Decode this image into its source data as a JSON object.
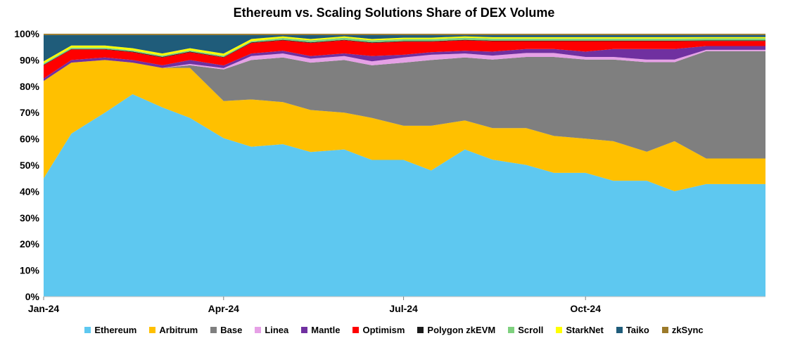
{
  "chart_data": {
    "type": "area",
    "title": "Ethereum vs. Scaling Solutions Share of DEX Volume",
    "xlabel": "",
    "ylabel": "",
    "ylim": [
      0,
      100
    ],
    "y_unit": "%",
    "y_ticks": [
      "0%",
      "10%",
      "20%",
      "30%",
      "40%",
      "50%",
      "60%",
      "70%",
      "80%",
      "90%",
      "100%"
    ],
    "x_tick_labels": [
      "Jan-24",
      "Apr-24",
      "Jul-24",
      "Oct-24"
    ],
    "legend_position": "bottom",
    "stacked": "percent",
    "x": [
      "2024-01-01",
      "2024-01-15",
      "2024-02-01",
      "2024-02-15",
      "2024-03-01",
      "2024-03-15",
      "2024-04-01",
      "2024-04-15",
      "2024-05-01",
      "2024-05-15",
      "2024-06-01",
      "2024-06-15",
      "2024-07-01",
      "2024-07-15",
      "2024-08-01",
      "2024-08-15",
      "2024-09-01",
      "2024-09-15",
      "2024-10-01",
      "2024-10-15",
      "2024-11-01",
      "2024-11-15",
      "2024-12-01"
    ],
    "series": [
      {
        "name": "Ethereum",
        "color": "#5EC8F0",
        "values": [
          45,
          62,
          70,
          77,
          72,
          68,
          60,
          57,
          58,
          55,
          56,
          52,
          52,
          48,
          56,
          52,
          50,
          47,
          47,
          44,
          44,
          40,
          44
        ]
      },
      {
        "name": "Arbitrum",
        "color": "#FFC000",
        "values": [
          37,
          27,
          20,
          12,
          15,
          19,
          14,
          18,
          16,
          16,
          14,
          16,
          13,
          17,
          11,
          12,
          14,
          14,
          13,
          15,
          11,
          19,
          10
        ]
      },
      {
        "name": "Base",
        "color": "#7F7F7F",
        "values": [
          0,
          0,
          0,
          0,
          0,
          1,
          12,
          15,
          17,
          18,
          20,
          20,
          24,
          25,
          24,
          26,
          27,
          30,
          30,
          31,
          34,
          30,
          42
        ]
      },
      {
        "name": "Linea",
        "color": "#E6A0E6",
        "values": [
          0,
          0,
          0,
          0,
          0,
          0.5,
          0.5,
          1.5,
          1.5,
          1.5,
          1.5,
          1.5,
          2,
          2,
          1.5,
          1.5,
          1.5,
          1.5,
          1,
          1,
          1,
          1,
          0.5
        ]
      },
      {
        "name": "Mantle",
        "color": "#7030A0",
        "values": [
          1,
          1,
          1,
          1,
          1,
          1.5,
          1,
          1,
          1,
          1,
          1,
          2,
          1,
          1,
          1,
          1.5,
          1.5,
          1.5,
          2,
          3,
          4,
          4,
          1.5
        ]
      },
      {
        "name": "Optimism",
        "color": "#FF0000",
        "values": [
          5,
          4,
          3,
          3,
          3,
          3,
          3,
          4,
          4,
          5,
          5,
          5,
          5,
          4,
          4,
          4,
          3,
          3,
          4,
          3,
          3,
          3,
          2
        ]
      },
      {
        "name": "Polygon zkEVM",
        "color": "#1A1A1A",
        "values": [
          0.2,
          0.2,
          0.2,
          0.2,
          0.2,
          0.2,
          0.2,
          0.2,
          0.2,
          0.2,
          0.2,
          0.2,
          0.2,
          0.2,
          0.2,
          0.2,
          0.2,
          0.2,
          0.2,
          0.2,
          0.2,
          0.2,
          0.2
        ]
      },
      {
        "name": "Scroll",
        "color": "#7FD17F",
        "values": [
          0.5,
          0.5,
          0.5,
          0.5,
          0.5,
          0.5,
          0.5,
          0.5,
          0.7,
          0.8,
          0.8,
          0.8,
          0.8,
          0.8,
          0.8,
          0.8,
          0.8,
          0.8,
          0.8,
          0.8,
          0.8,
          0.8,
          0.8
        ]
      },
      {
        "name": "StarkNet",
        "color": "#FFFF00",
        "values": [
          0.8,
          0.8,
          0.8,
          0.8,
          0.8,
          0.8,
          0.8,
          0.8,
          0.6,
          0.5,
          0.5,
          0.5,
          0.5,
          0.5,
          0.5,
          0.5,
          0.5,
          0.5,
          0.5,
          0.5,
          0.5,
          0.5,
          0.5
        ]
      },
      {
        "name": "Taiko",
        "color": "#1F5C7A",
        "values": [
          10,
          4,
          4,
          5,
          7,
          5,
          7,
          1.5,
          0.5,
          1.5,
          0.5,
          1.5,
          1,
          1,
          0.5,
          0.8,
          0.8,
          0.8,
          0.8,
          0.8,
          0.8,
          0.8,
          0.8
        ]
      },
      {
        "name": "zkSync",
        "color": "#9C7A2A",
        "values": [
          0.5,
          0.5,
          0.5,
          0.5,
          0.5,
          0.5,
          0.5,
          0.5,
          0.5,
          0.5,
          0.5,
          0.5,
          0.5,
          0.5,
          0.5,
          0.5,
          0.5,
          0.5,
          0.5,
          0.5,
          0.5,
          0.5,
          0.5
        ]
      }
    ]
  }
}
